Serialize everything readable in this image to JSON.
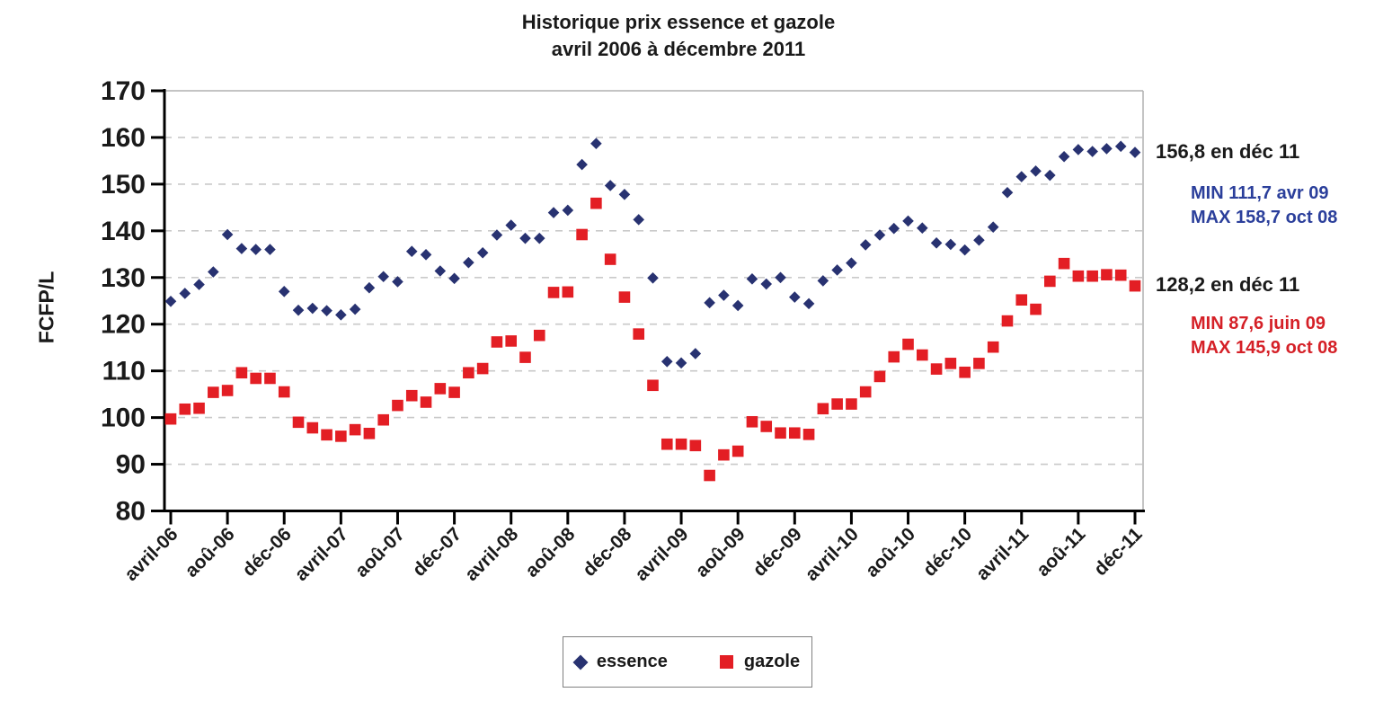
{
  "title": {
    "line1": "Historique prix essence et gazole",
    "line2": "avril 2006 à décembre 2011"
  },
  "y_axis_label": "FCFP/L",
  "legend": {
    "essence_label": "essence",
    "gazole_label": "gazole"
  },
  "annotations": {
    "essence_last": "156,8 en déc 11",
    "essence_min": "MIN 111,7 avr 09",
    "essence_max": "MAX 158,7 oct 08",
    "gazole_last": "128,2 en déc 11",
    "gazole_min": "MIN 87,6 juin 09",
    "gazole_max": "MAX 145,9 oct 08"
  },
  "colors": {
    "essence_marker": "#283271",
    "essence_text": "#2B3F9B",
    "gazole_marker": "#E31E24",
    "gazole_text": "#D52027",
    "axis": "#000000",
    "gridline": "#c9c9c9",
    "plot_border": "#b0b0b0",
    "text": "#1a1a1a"
  },
  "chart_data": {
    "type": "scatter",
    "title": "Historique prix essence et gazole avril 2006 à décembre 2011",
    "xlabel": "",
    "ylabel": "FCFP/L",
    "ylim": [
      80,
      170
    ],
    "y_ticks": [
      80,
      90,
      100,
      110,
      120,
      130,
      140,
      150,
      160,
      170
    ],
    "grid": "horizontal-dashed",
    "legend_position": "bottom",
    "x_frequency": "monthly",
    "x_start": "avril 2006",
    "x_end": "décembre 2011",
    "n_points": 69,
    "x_tick_every_n_months": 4,
    "x_tick_labels": [
      "avril-06",
      "aoû-06",
      "déc-06",
      "avril-07",
      "aoû-07",
      "déc-07",
      "avril-08",
      "aoû-08",
      "déc-08",
      "avril-09",
      "aoû-09",
      "déc-09",
      "avril-10",
      "aoû-10",
      "déc-10",
      "avril-11",
      "aoû-11",
      "déc-11"
    ],
    "series": [
      {
        "name": "essence",
        "marker": "diamond",
        "color": "#283271",
        "values": [
          124.9,
          126.6,
          128.5,
          131.2,
          139.2,
          136.2,
          136.0,
          136.0,
          127.0,
          123.0,
          123.4,
          122.9,
          122.0,
          123.2,
          127.8,
          130.2,
          129.1,
          135.6,
          134.9,
          131.4,
          129.8,
          133.2,
          135.3,
          139.1,
          141.2,
          138.4,
          138.4,
          143.9,
          144.4,
          154.2,
          158.7,
          149.7,
          147.8,
          142.4,
          129.9,
          112.0,
          111.7,
          113.7,
          124.6,
          126.2,
          124.0,
          129.7,
          128.6,
          130.0,
          125.8,
          124.4,
          129.3,
          131.6,
          133.1,
          137.0,
          139.1,
          140.5,
          142.1,
          140.6,
          137.4,
          137.1,
          135.9,
          138.0,
          140.8,
          148.2,
          151.6,
          152.8,
          151.9,
          155.9,
          157.4,
          157.0,
          157.6,
          158.1,
          156.8
        ]
      },
      {
        "name": "gazole",
        "marker": "square",
        "color": "#E31E24",
        "values": [
          99.7,
          101.8,
          102.0,
          105.4,
          105.8,
          109.6,
          108.4,
          108.4,
          105.5,
          99.0,
          97.8,
          96.3,
          96.0,
          97.4,
          96.6,
          99.5,
          102.6,
          104.7,
          103.3,
          106.2,
          105.4,
          109.6,
          110.5,
          116.2,
          116.4,
          112.9,
          117.6,
          126.8,
          126.9,
          139.2,
          145.9,
          133.9,
          125.8,
          117.9,
          106.9,
          94.3,
          94.3,
          94.0,
          87.6,
          92.0,
          92.8,
          99.1,
          98.1,
          96.7,
          96.7,
          96.4,
          101.9,
          102.9,
          102.9,
          105.5,
          108.8,
          113.0,
          115.7,
          113.4,
          110.4,
          111.6,
          109.7,
          111.6,
          115.1,
          120.7,
          125.2,
          123.2,
          129.2,
          133.0,
          130.3,
          130.3,
          130.6,
          130.5,
          128.2
        ]
      }
    ],
    "annotations": [
      {
        "text": "156,8 en déc 11",
        "color": "black",
        "refers_to": "essence last point"
      },
      {
        "text": "MIN 111,7 avr 09",
        "color": "blue",
        "refers_to": "essence minimum"
      },
      {
        "text": "MAX 158,7 oct 08",
        "color": "blue",
        "refers_to": "essence maximum"
      },
      {
        "text": "128,2 en déc 11",
        "color": "black",
        "refers_to": "gazole last point"
      },
      {
        "text": "MIN 87,6 juin 09",
        "color": "red",
        "refers_to": "gazole minimum"
      },
      {
        "text": "MAX 145,9 oct 08",
        "color": "red",
        "refers_to": "gazole maximum"
      }
    ]
  }
}
